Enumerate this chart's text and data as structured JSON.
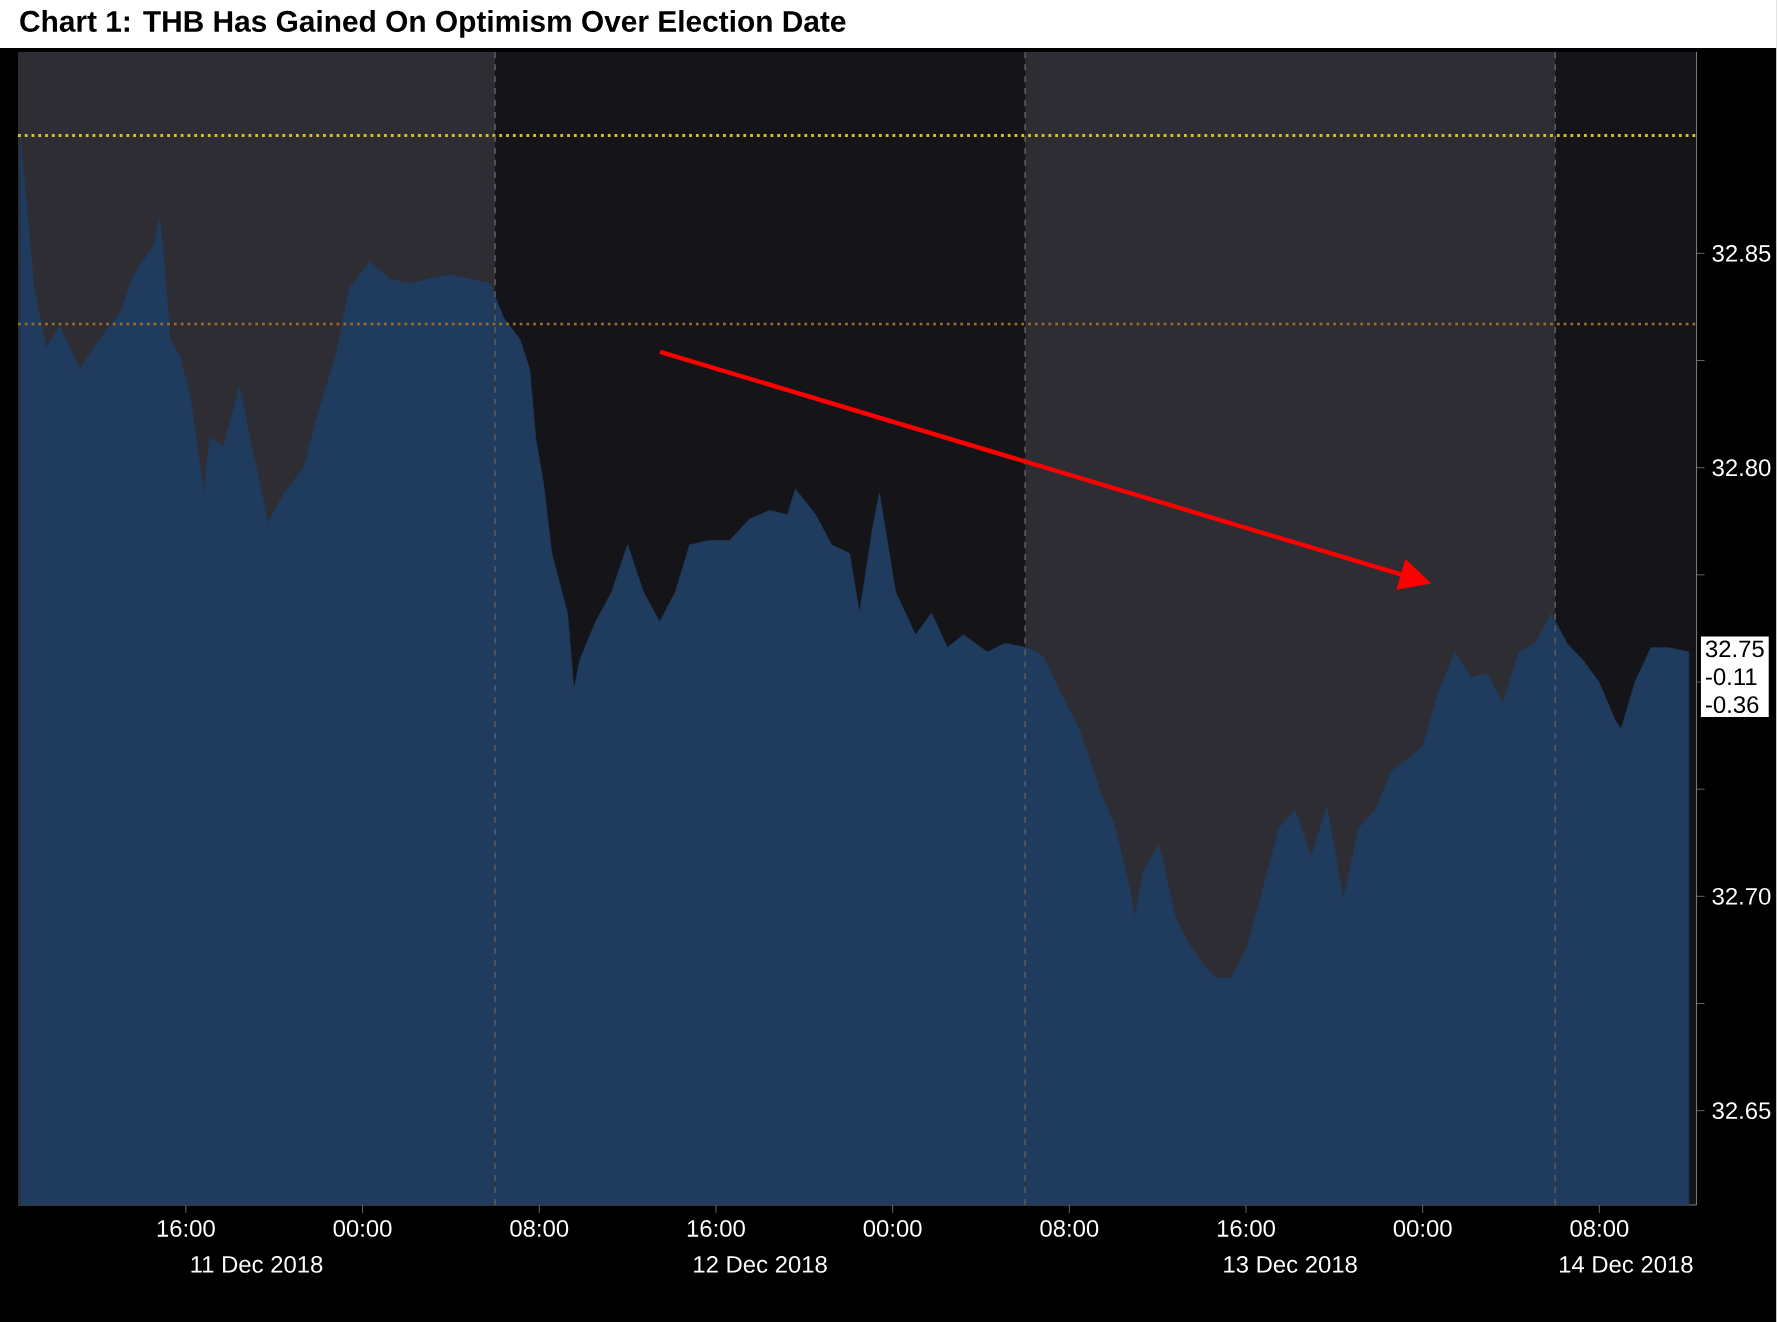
{
  "chart_data": {
    "type": "area",
    "title": "Chart 1: THB Has Gained On Optimism Over Election Date",
    "x": [
      "2018-12-11T08:30",
      "2018-12-11T08:51",
      "2018-12-11T09:07",
      "2018-12-11T09:40",
      "2018-12-11T10:18",
      "2018-12-11T11:12",
      "2018-12-11T12:06",
      "2018-12-11T13:01",
      "2018-12-11T13:39",
      "2018-12-11T14:33",
      "2018-12-11T14:49",
      "2018-12-11T15:00",
      "2018-12-11T15:17",
      "2018-12-11T15:44",
      "2018-12-11T16:11",
      "2018-12-11T16:49",
      "2018-12-11T17:05",
      "2018-12-11T17:43",
      "2018-12-11T18:26",
      "2018-12-11T18:59",
      "2018-12-11T19:43",
      "2018-12-11T20:26",
      "2018-12-11T21:20",
      "2018-12-11T22:04",
      "2018-12-11T22:47",
      "2018-12-11T23:25",
      "2018-12-12T00:20",
      "2018-12-12T01:14",
      "2018-12-12T02:08",
      "2018-12-12T03:02",
      "2018-12-12T03:57",
      "2018-12-12T04:51",
      "2018-12-12T05:46",
      "2018-12-12T06:23",
      "2018-12-12T07:07",
      "2018-12-12T07:34",
      "2018-12-12T07:50",
      "2018-12-12T08:12",
      "2018-12-12T08:34",
      "2018-12-12T09:17",
      "2018-12-12T09:34",
      "2018-12-12T09:50",
      "2018-12-12T10:33",
      "2018-12-12T11:17",
      "2018-12-12T12:00",
      "2018-12-12T12:43",
      "2018-12-12T13:27",
      "2018-12-12T14:10",
      "2018-12-12T14:49",
      "2018-12-12T15:43",
      "2018-12-12T16:37",
      "2018-12-12T17:31",
      "2018-12-12T18:26",
      "2018-12-12T19:14",
      "2018-12-12T19:36",
      "2018-12-12T20:31",
      "2018-12-12T21:14",
      "2018-12-12T22:03",
      "2018-12-12T22:30",
      "2018-12-12T23:08",
      "2018-12-12T23:24",
      "2018-12-13T00:08",
      "2018-12-13T01:02",
      "2018-12-13T01:46",
      "2018-12-13T02:29",
      "2018-12-13T03:12",
      "2018-12-13T04:17",
      "2018-12-13T05:06",
      "2018-12-13T06:06",
      "2018-12-13T06:49",
      "2018-12-13T07:33",
      "2018-12-13T08:27",
      "2018-12-13T09:22",
      "2018-12-13T10:05",
      "2018-12-13T10:43",
      "2018-12-13T10:59",
      "2018-12-13T11:21",
      "2018-12-13T12:04",
      "2018-12-13T12:48",
      "2018-12-13T13:31",
      "2018-12-13T14:14",
      "2018-12-13T14:37",
      "2018-12-13T15:20",
      "2018-12-13T16:03",
      "2018-12-13T16:47",
      "2018-12-13T17:30",
      "2018-12-13T18:14",
      "2018-12-13T18:57",
      "2018-12-13T19:40",
      "2018-12-13T20:24",
      "2018-12-13T21:07",
      "2018-12-13T21:51",
      "2018-12-13T22:34",
      "2018-12-13T23:17",
      "2018-12-14T00:01",
      "2018-12-14T00:44",
      "2018-12-14T01:28",
      "2018-12-14T02:11",
      "2018-12-14T02:55",
      "2018-12-14T03:38",
      "2018-12-14T04:22",
      "2018-12-14T05:05",
      "2018-12-14T05:49",
      "2018-12-14T06:32",
      "2018-12-14T07:16",
      "2018-12-14T07:59",
      "2018-12-14T08:43",
      "2018-12-14T08:59",
      "2018-12-14T09:37",
      "2018-12-14T10:20",
      "2018-12-14T11:09",
      "2018-12-14T12:03"
    ],
    "series": [
      {
        "color": "#1f3b5e",
        "values": [
          32.877,
          32.858,
          32.842,
          32.828,
          32.833,
          32.823,
          32.83,
          32.836,
          32.845,
          32.852,
          32.858,
          32.849,
          32.83,
          32.826,
          32.817,
          32.794,
          32.807,
          32.805,
          32.819,
          32.805,
          32.787,
          32.794,
          32.8,
          32.814,
          32.826,
          32.842,
          32.848,
          32.844,
          32.843,
          32.844,
          32.845,
          32.844,
          32.843,
          32.835,
          32.83,
          32.823,
          32.807,
          32.796,
          32.78,
          32.766,
          32.748,
          32.755,
          32.764,
          32.771,
          32.782,
          32.771,
          32.764,
          32.771,
          32.782,
          32.783,
          32.783,
          32.788,
          32.79,
          32.789,
          32.795,
          32.789,
          32.782,
          32.78,
          32.766,
          32.787,
          32.794,
          32.771,
          32.761,
          32.766,
          32.758,
          32.761,
          32.757,
          32.759,
          32.758,
          32.756,
          32.748,
          32.739,
          32.725,
          32.716,
          32.702,
          32.695,
          32.706,
          32.712,
          32.695,
          32.688,
          32.683,
          32.681,
          32.681,
          32.688,
          32.702,
          32.716,
          32.72,
          32.709,
          32.721,
          32.699,
          32.716,
          32.72,
          32.729,
          32.732,
          32.735,
          32.748,
          32.757,
          32.751,
          32.752,
          32.745,
          32.757,
          32.759,
          32.766,
          32.759,
          32.755,
          32.75,
          32.741,
          32.739,
          32.75,
          32.758,
          32.758,
          32.757
        ]
      }
    ],
    "xlim": [
      "2018-12-11T08:24",
      "2018-12-14T12:24"
    ],
    "ylim": [
      32.628,
      32.897
    ],
    "xticks": [
      {
        "value": "2018-12-11T16:00",
        "label": "16:00"
      },
      {
        "value": "2018-12-12T00:00",
        "label": "00:00"
      },
      {
        "value": "2018-12-12T08:00",
        "label": "08:00"
      },
      {
        "value": "2018-12-12T16:00",
        "label": "16:00"
      },
      {
        "value": "2018-12-13T00:00",
        "label": "00:00"
      },
      {
        "value": "2018-12-13T08:00",
        "label": "08:00"
      },
      {
        "value": "2018-12-13T16:00",
        "label": "16:00"
      },
      {
        "value": "2018-12-14T00:00",
        "label": "00:00"
      },
      {
        "value": "2018-12-14T08:00",
        "label": "08:00"
      }
    ],
    "x2lim": [
      "2018-12-11T08:24",
      "2018-12-14T12:24"
    ],
    "x2ticks": [
      {
        "value": "2018-12-11T19:12",
        "label": "11 Dec 2018"
      },
      {
        "value": "2018-12-12T18:00",
        "label": "12 Dec 2018"
      },
      {
        "value": "2018-12-13T18:00",
        "label": "13 Dec 2018"
      },
      {
        "value": "2018-12-14T09:12",
        "label": "14 Dec 2018"
      }
    ],
    "yticks": [
      {
        "value": 32.65,
        "label": "32.65"
      },
      {
        "value": 32.675,
        "label": null
      },
      {
        "value": 32.7,
        "label": "32.70"
      },
      {
        "value": 32.725,
        "label": null
      },
      {
        "value": 32.75,
        "label": null
      },
      {
        "value": 32.775,
        "label": null
      },
      {
        "value": 32.8,
        "label": "32.80"
      },
      {
        "value": 32.825,
        "label": null
      },
      {
        "value": 32.85,
        "label": "32.85"
      }
    ],
    "ref_lines": [
      {
        "axis": "y",
        "value": 32.8775,
        "color": "#d8c21a",
        "line_style": "dotted"
      },
      {
        "axis": "y",
        "value": 32.8335,
        "color": "#9a6a2a",
        "line_style": "dotted"
      },
      {
        "axis": "x",
        "value": "2018-12-12T06:00",
        "color": "#5a5a60",
        "line_style": "dashed"
      },
      {
        "axis": "x",
        "value": "2018-12-13T06:00",
        "color": "#5a5a60",
        "line_style": "dashed"
      },
      {
        "axis": "x",
        "value": "2018-12-14T06:00",
        "color": "#5a5a60",
        "line_style": "dashed"
      }
    ],
    "bands": [
      {
        "axis": "x",
        "from": "2018-12-11T08:24",
        "to": "2018-12-12T06:00",
        "color": "#2e2d33"
      },
      {
        "axis": "x",
        "from": "2018-12-13T06:00",
        "to": "2018-12-14T06:00",
        "color": "#2e2d33"
      }
    ],
    "annotations": [
      "32.75",
      "-0.11",
      "-0.36"
    ]
  }
}
